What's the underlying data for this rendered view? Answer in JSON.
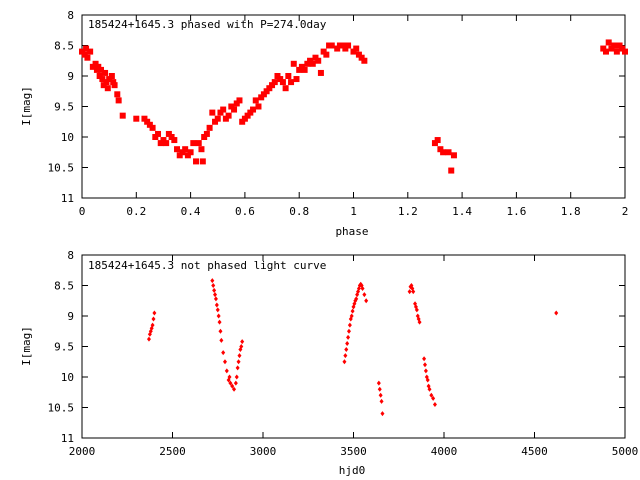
{
  "chart_data": [
    {
      "type": "scatter",
      "title": "185424+1645.3 phased with P=274.0day",
      "xlabel": "phase",
      "ylabel": "I[mag]",
      "xlim": [
        0,
        2
      ],
      "ylim": [
        8,
        11
      ],
      "y_inverted": true,
      "xticks": [
        0,
        0.2,
        0.4,
        0.6,
        0.8,
        1,
        1.2,
        1.4,
        1.6,
        1.8,
        2
      ],
      "xtick_labels": [
        "0",
        "0.2",
        "0.4",
        "0.6",
        "0.8",
        "1",
        "1.2",
        "1.4",
        "1.6",
        "1.8",
        "2"
      ],
      "yticks": [
        8,
        8.5,
        9,
        9.5,
        10,
        10.5,
        11
      ],
      "ytick_labels": [
        "8",
        "8.5",
        "9",
        "9.5",
        "10",
        "10.5",
        "11"
      ],
      "grid": false,
      "marker_color": "#ff0000",
      "series": [
        {
          "points": [
            [
              0.0,
              8.6
            ],
            [
              0.01,
              8.65
            ],
            [
              0.015,
              8.55
            ],
            [
              0.02,
              8.7
            ],
            [
              0.03,
              8.6
            ],
            [
              0.04,
              8.85
            ],
            [
              0.05,
              8.8
            ],
            [
              0.055,
              8.9
            ],
            [
              0.06,
              8.85
            ],
            [
              0.065,
              9.0
            ],
            [
              0.07,
              8.9
            ],
            [
              0.075,
              9.05
            ],
            [
              0.08,
              9.15
            ],
            [
              0.085,
              8.95
            ],
            [
              0.09,
              9.1
            ],
            [
              0.095,
              9.2
            ],
            [
              0.1,
              9.05
            ],
            [
              0.11,
              9.0
            ],
            [
              0.115,
              9.1
            ],
            [
              0.12,
              9.15
            ],
            [
              0.13,
              9.3
            ],
            [
              0.135,
              9.4
            ],
            [
              0.15,
              9.65
            ],
            [
              0.2,
              9.7
            ],
            [
              0.23,
              9.7
            ],
            [
              0.24,
              9.75
            ],
            [
              0.25,
              9.8
            ],
            [
              0.26,
              9.85
            ],
            [
              0.27,
              10.0
            ],
            [
              0.28,
              9.95
            ],
            [
              0.29,
              10.1
            ],
            [
              0.3,
              10.05
            ],
            [
              0.31,
              10.1
            ],
            [
              0.32,
              9.95
            ],
            [
              0.33,
              10.0
            ],
            [
              0.34,
              10.05
            ],
            [
              0.35,
              10.2
            ],
            [
              0.36,
              10.3
            ],
            [
              0.37,
              10.25
            ],
            [
              0.38,
              10.2
            ],
            [
              0.39,
              10.3
            ],
            [
              0.4,
              10.25
            ],
            [
              0.41,
              10.1
            ],
            [
              0.42,
              10.4
            ],
            [
              0.43,
              10.1
            ],
            [
              0.44,
              10.2
            ],
            [
              0.445,
              10.4
            ],
            [
              0.45,
              10.0
            ],
            [
              0.46,
              9.95
            ],
            [
              0.47,
              9.85
            ],
            [
              0.48,
              9.6
            ],
            [
              0.49,
              9.75
            ],
            [
              0.5,
              9.7
            ],
            [
              0.51,
              9.6
            ],
            [
              0.52,
              9.55
            ],
            [
              0.53,
              9.7
            ],
            [
              0.54,
              9.65
            ],
            [
              0.55,
              9.5
            ],
            [
              0.56,
              9.55
            ],
            [
              0.57,
              9.45
            ],
            [
              0.58,
              9.4
            ],
            [
              0.59,
              9.75
            ],
            [
              0.6,
              9.7
            ],
            [
              0.61,
              9.65
            ],
            [
              0.62,
              9.6
            ],
            [
              0.63,
              9.55
            ],
            [
              0.64,
              9.4
            ],
            [
              0.65,
              9.5
            ],
            [
              0.66,
              9.35
            ],
            [
              0.67,
              9.3
            ],
            [
              0.68,
              9.25
            ],
            [
              0.69,
              9.2
            ],
            [
              0.7,
              9.15
            ],
            [
              0.71,
              9.1
            ],
            [
              0.72,
              9.0
            ],
            [
              0.73,
              9.05
            ],
            [
              0.74,
              9.1
            ],
            [
              0.75,
              9.2
            ],
            [
              0.76,
              9.0
            ],
            [
              0.77,
              9.1
            ],
            [
              0.78,
              8.8
            ],
            [
              0.79,
              9.05
            ],
            [
              0.8,
              8.9
            ],
            [
              0.81,
              8.85
            ],
            [
              0.82,
              8.9
            ],
            [
              0.83,
              8.8
            ],
            [
              0.84,
              8.75
            ],
            [
              0.85,
              8.8
            ],
            [
              0.86,
              8.7
            ],
            [
              0.87,
              8.75
            ],
            [
              0.88,
              8.95
            ],
            [
              0.89,
              8.6
            ],
            [
              0.9,
              8.65
            ],
            [
              0.91,
              8.5
            ],
            [
              0.92,
              8.5
            ],
            [
              0.94,
              8.55
            ],
            [
              0.95,
              8.5
            ],
            [
              0.96,
              8.5
            ],
            [
              0.97,
              8.55
            ],
            [
              0.98,
              8.5
            ],
            [
              1.0,
              8.6
            ],
            [
              1.01,
              8.55
            ],
            [
              1.02,
              8.65
            ],
            [
              1.03,
              8.7
            ],
            [
              1.04,
              8.75
            ],
            [
              1.3,
              10.1
            ],
            [
              1.31,
              10.05
            ],
            [
              1.32,
              10.2
            ],
            [
              1.33,
              10.25
            ],
            [
              1.35,
              10.25
            ],
            [
              1.36,
              10.55
            ],
            [
              1.37,
              10.3
            ],
            [
              1.92,
              8.55
            ],
            [
              1.93,
              8.6
            ],
            [
              1.94,
              8.45
            ],
            [
              1.95,
              8.55
            ],
            [
              1.96,
              8.5
            ],
            [
              1.97,
              8.6
            ],
            [
              1.98,
              8.5
            ],
            [
              1.99,
              8.55
            ],
            [
              2.0,
              8.6
            ]
          ]
        }
      ]
    },
    {
      "type": "scatter",
      "title": "185424+1645.3 not phased light curve",
      "xlabel": "hjd0",
      "ylabel": "I[mag]",
      "xlim": [
        2000,
        5000
      ],
      "ylim": [
        8,
        11
      ],
      "y_inverted": true,
      "xticks": [
        2000,
        2500,
        3000,
        3500,
        4000,
        4500,
        5000
      ],
      "xtick_labels": [
        "2000",
        "2500",
        "3000",
        "3500",
        "4000",
        "4500",
        "5000"
      ],
      "yticks": [
        8,
        8.5,
        9,
        9.5,
        10,
        10.5,
        11
      ],
      "ytick_labels": [
        "8",
        "8.5",
        "9",
        "9.5",
        "10",
        "10.5",
        "11"
      ],
      "grid": false,
      "marker_color": "#ff0000",
      "series": [
        {
          "points": [
            [
              2370,
              9.38
            ],
            [
              2375,
              9.3
            ],
            [
              2380,
              9.25
            ],
            [
              2385,
              9.2
            ],
            [
              2390,
              9.15
            ],
            [
              2395,
              9.05
            ],
            [
              2400,
              8.95
            ],
            [
              2720,
              8.42
            ],
            [
              2725,
              8.5
            ],
            [
              2730,
              8.58
            ],
            [
              2735,
              8.65
            ],
            [
              2740,
              8.72
            ],
            [
              2745,
              8.82
            ],
            [
              2750,
              8.9
            ],
            [
              2755,
              9.0
            ],
            [
              2760,
              9.1
            ],
            [
              2765,
              9.25
            ],
            [
              2770,
              9.4
            ],
            [
              2780,
              9.6
            ],
            [
              2790,
              9.75
            ],
            [
              2800,
              9.9
            ],
            [
              2810,
              10.05
            ],
            [
              2815,
              10.0
            ],
            [
              2820,
              10.1
            ],
            [
              2830,
              10.15
            ],
            [
              2840,
              10.2
            ],
            [
              2850,
              10.1
            ],
            [
              2855,
              10.0
            ],
            [
              2860,
              9.85
            ],
            [
              2865,
              9.75
            ],
            [
              2870,
              9.65
            ],
            [
              2875,
              9.55
            ],
            [
              2880,
              9.5
            ],
            [
              2885,
              9.42
            ],
            [
              3450,
              9.75
            ],
            [
              3455,
              9.65
            ],
            [
              3460,
              9.55
            ],
            [
              3465,
              9.45
            ],
            [
              3470,
              9.35
            ],
            [
              3475,
              9.25
            ],
            [
              3480,
              9.15
            ],
            [
              3485,
              9.05
            ],
            [
              3490,
              9.0
            ],
            [
              3495,
              8.92
            ],
            [
              3500,
              8.85
            ],
            [
              3505,
              8.8
            ],
            [
              3510,
              8.75
            ],
            [
              3515,
              8.72
            ],
            [
              3520,
              8.65
            ],
            [
              3525,
              8.6
            ],
            [
              3530,
              8.55
            ],
            [
              3535,
              8.5
            ],
            [
              3540,
              8.48
            ],
            [
              3545,
              8.5
            ],
            [
              3550,
              8.55
            ],
            [
              3560,
              8.65
            ],
            [
              3570,
              8.75
            ],
            [
              3640,
              10.1
            ],
            [
              3645,
              10.2
            ],
            [
              3650,
              10.3
            ],
            [
              3655,
              10.4
            ],
            [
              3660,
              10.6
            ],
            [
              3810,
              8.6
            ],
            [
              3815,
              8.52
            ],
            [
              3820,
              8.5
            ],
            [
              3825,
              8.55
            ],
            [
              3830,
              8.6
            ],
            [
              3840,
              8.8
            ],
            [
              3845,
              8.85
            ],
            [
              3850,
              8.9
            ],
            [
              3855,
              9.0
            ],
            [
              3860,
              9.05
            ],
            [
              3865,
              9.1
            ],
            [
              3890,
              9.7
            ],
            [
              3895,
              9.8
            ],
            [
              3900,
              9.9
            ],
            [
              3905,
              10.0
            ],
            [
              3910,
              10.05
            ],
            [
              3915,
              10.15
            ],
            [
              3920,
              10.2
            ],
            [
              3930,
              10.3
            ],
            [
              3940,
              10.35
            ],
            [
              3950,
              10.45
            ],
            [
              4620,
              8.95
            ]
          ]
        }
      ]
    }
  ]
}
